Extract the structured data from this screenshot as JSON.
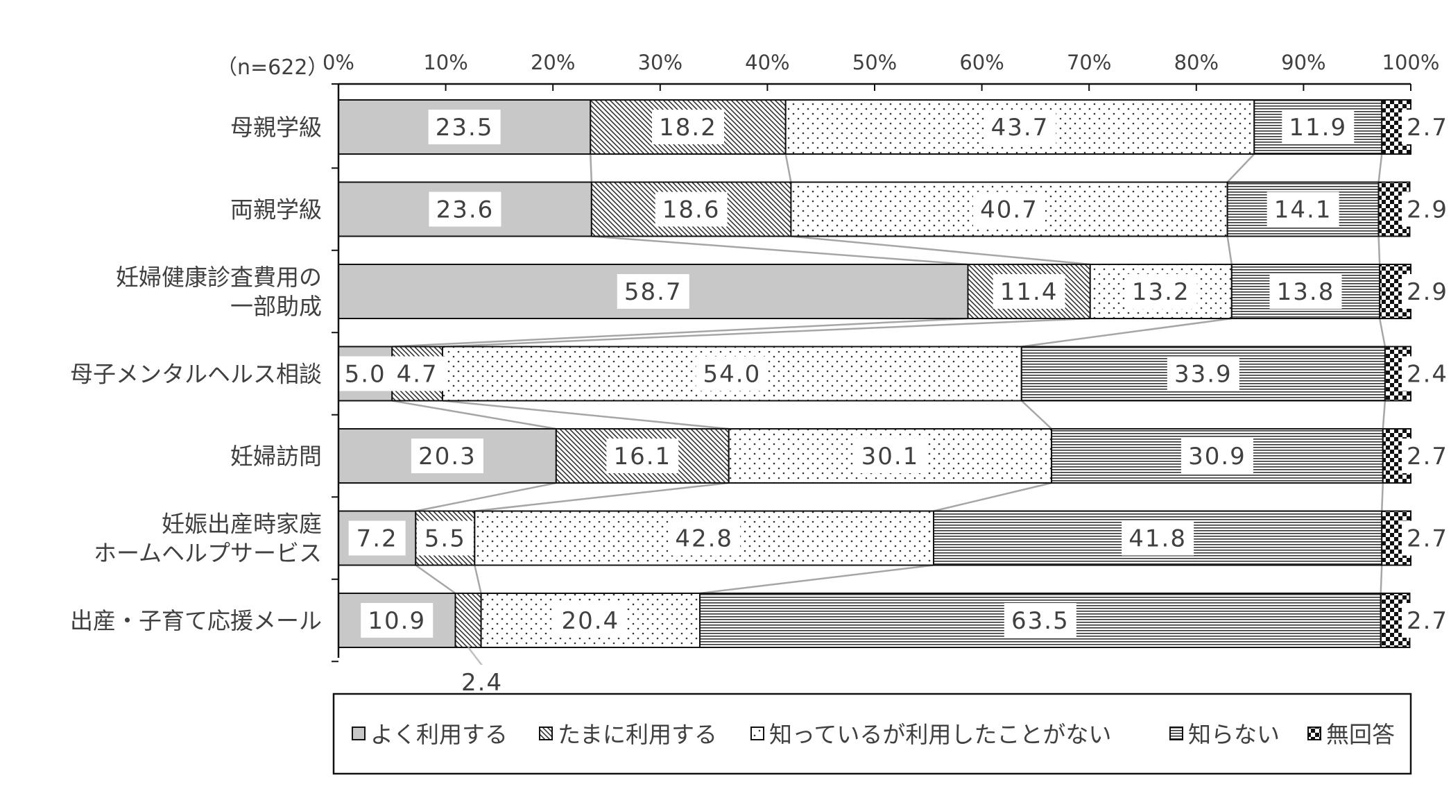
{
  "chart_data": {
    "type": "bar",
    "orientation": "horizontal",
    "stacked": true,
    "percent": true,
    "sample_label": "（n=622）",
    "xlim": [
      0,
      100
    ],
    "x_ticks": [
      "0%",
      "10%",
      "20%",
      "30%",
      "40%",
      "50%",
      "60%",
      "70%",
      "80%",
      "90%",
      "100%"
    ],
    "categories": [
      "母親学級",
      "両親学級",
      "妊婦健康診査費用の\n一部助成",
      "母子メンタルヘルス相談",
      "妊婦訪問",
      "妊娠出産時家庭\nホームヘルプサービス",
      "出産・子育て応援メール"
    ],
    "series": [
      {
        "name": "よく利用する",
        "color": "#c8c8c8",
        "pattern": "solid",
        "values": [
          23.5,
          23.6,
          58.7,
          5.0,
          20.3,
          7.2,
          10.9
        ]
      },
      {
        "name": "たまに利用する",
        "color": "#ffffff",
        "pattern": "diagonal",
        "values": [
          18.2,
          18.6,
          11.4,
          4.7,
          16.1,
          5.5,
          2.4
        ]
      },
      {
        "name": "知っているが利用したことがない",
        "color": "#ffffff",
        "pattern": "dots",
        "values": [
          43.7,
          40.7,
          13.2,
          54.0,
          30.1,
          42.8,
          20.4
        ]
      },
      {
        "name": "知らない",
        "color": "#ffffff",
        "pattern": "horizontal",
        "values": [
          11.9,
          14.1,
          13.8,
          33.9,
          30.9,
          41.8,
          63.5
        ]
      },
      {
        "name": "無回答",
        "color": "#ffffff",
        "pattern": "checker",
        "values": [
          2.7,
          2.9,
          2.9,
          2.4,
          2.7,
          2.7,
          2.7
        ]
      }
    ],
    "legend_position": "bottom",
    "series_lines": true,
    "grid": false
  }
}
